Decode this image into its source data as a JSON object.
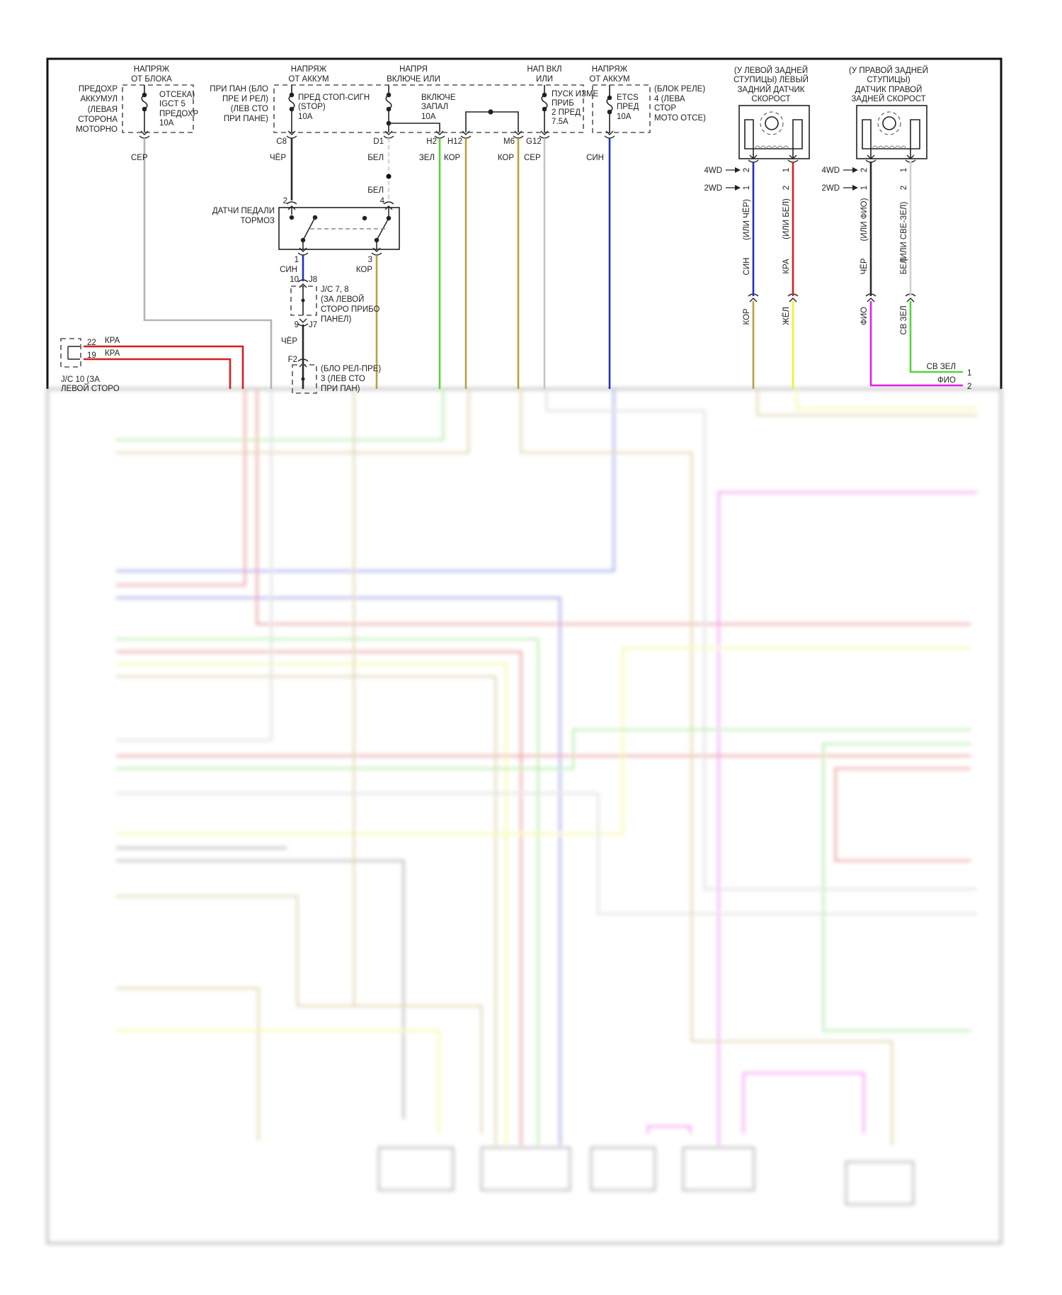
{
  "top": {
    "supply_block": [
      "НАПРЯЖ",
      "ОТ БЛОКА"
    ],
    "supply_batt": [
      "НАПРЯЖ",
      "ОТ АККУМ"
    ],
    "supply_ign": [
      "НАПРЯ",
      "ВКЛЮЧЕ ИЛИ"
    ],
    "supply_ign2": [
      "НАП ВКЛ",
      "ИЛИ"
    ],
    "supply_batt2": [
      "НАПРЯЖ",
      "ОТ АККУМ"
    ],
    "engine_fuse_box": [
      "ПРЕДОХР",
      "АККУМУЛ",
      "(ЛЕВАЯ",
      "СТОРОНА",
      "МОТОРНО"
    ],
    "fuse_igct": [
      "ОТСЕКА)",
      "IGCT 5",
      "ПРЕДОХР",
      "10A"
    ],
    "panel_box": [
      "ПРИ ПАН (БЛО",
      "ПРЕ И РЕЛ)",
      "(ЛЕВ СТО",
      "ПРИ ПАНЕ)"
    ],
    "fuse_stop": [
      "ПРЕД СТОП-СИГН",
      "(STOP)",
      "10A"
    ],
    "fuse_ign": [
      "ВКЛЮЧЕ",
      "ЗАПАЛ",
      "10A"
    ],
    "fuse_gauge": [
      "ПУСК ИЗМЕ",
      "ПРИБ",
      "2 ПРЕД",
      "7.5A"
    ],
    "fuse_etcs": [
      "ETCS",
      "ПРЕД",
      "10A"
    ],
    "relay_box": [
      "(БЛОК РЕЛЕ)",
      "4 (ЛЕВА",
      "СТОР",
      "МОТО ОТСЕ)"
    ]
  },
  "pins": {
    "c8": "C8",
    "d1": "D1",
    "h2": "H2",
    "h12": "H12",
    "m6": "M6",
    "g12": "G12"
  },
  "wire_colors": {
    "gray1": "СЕР",
    "black1": "ЧЁР",
    "white1": "БЕЛ",
    "green1": "ЗЕЛ",
    "brown1": "КОР",
    "brown2": "КОР",
    "gray2": "СЕР",
    "blue1": "СИН",
    "white2": "БЕЛ",
    "blue2": "СИН",
    "brown3": "КОР",
    "black2": "ЧЁР",
    "red1": "КРА",
    "red2": "КРА"
  },
  "brake_switch": {
    "label": [
      "ДАТЧИ ПЕДАЛИ",
      "ТОРМОЗ"
    ],
    "pins": [
      "2",
      "4",
      "1",
      "3"
    ]
  },
  "jc78": {
    "pin_top": "10",
    "pin_top_id": "J8",
    "pin_bot": "9",
    "pin_bot_id": "J7",
    "label": [
      "J/C 7, 8",
      "(ЗА ЛЕВОЙ",
      "СТОРО ПРИБО",
      "ПАНЕЛ)"
    ]
  },
  "relay_block3": {
    "pin": "F2",
    "label": [
      "(БЛО РЕЛ-ПРЕ)",
      "3 (ЛЕВ СТО",
      "ПРИ ПАН)"
    ]
  },
  "jc10": {
    "pins": [
      "22",
      "19"
    ],
    "label": [
      "J/C 10 (ЗА",
      "ЛЕВОЙ СТОРО"
    ]
  },
  "left_sensor": {
    "title": [
      "(У ЛЕВОЙ ЗАДНЕЙ",
      "СТУПИЦЫ) ЛЕВЫЙ",
      "ЗАДНИЙ ДАТЧИК",
      "СКОРОСТ"
    ],
    "variant_4wd": "4WD",
    "variant_2wd": "2WD",
    "pin_a": [
      "2",
      "1"
    ],
    "pin_b": [
      "1",
      "2"
    ],
    "wire_a": [
      "(ИЛИ ЧЁР)",
      "СИН",
      "КОР"
    ],
    "wire_b": [
      "(ИЛИ БЕЛ)",
      "КРА",
      "ЖЁЛ"
    ]
  },
  "right_sensor": {
    "title": [
      "(У ПРАВОЙ ЗАДНЕЙ",
      "СТУПИЦЫ)",
      "ДАТЧИК ПРАВОЙ",
      "ЗАДНЕЙ СКОРОСТ"
    ],
    "variant_4wd": "4WD",
    "variant_2wd": "2WD",
    "pin_a": [
      "2",
      "1"
    ],
    "pin_b": [
      "1",
      "2"
    ],
    "wire_a": [
      "(ИЛИ ФИО)",
      "ЧЁР",
      "ФИО"
    ],
    "wire_b": [
      "(ИЛИ СВЕ-ЗЕЛ)",
      "БЕЛ",
      "СВ ЗЕЛ"
    ],
    "out": [
      {
        "label": "СВ ЗЕЛ",
        "pin": "1"
      },
      {
        "label": "ФИО",
        "pin": "2"
      }
    ]
  },
  "colors": {
    "gray": "#b4b4b4",
    "black": "#2a2a2a",
    "green": "#55d43a",
    "brown": "#b8a040",
    "blue": "#2230c0",
    "red": "#d42020",
    "yellow": "#f0f030",
    "violet": "#e020e0",
    "white": "#d8d8d8"
  }
}
